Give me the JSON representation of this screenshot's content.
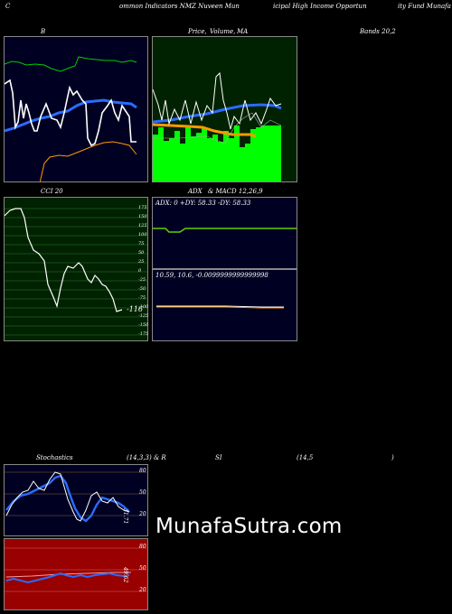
{
  "header": {
    "parts": [
      "C",
      "ommon  Indicators NMZ Nuveen  Mun",
      "icipal High Income  Opportun",
      "ity Fund Munafa"
    ]
  },
  "bb_panel": {
    "title": "B"
  },
  "price_panel": {
    "title_a": "Price,",
    "title_b": "Volume,",
    "title_c": "MA"
  },
  "bands_label": "Bands 20,2",
  "cci_panel": {
    "title": "CCI 20",
    "ticks": [
      "175",
      "150",
      "125",
      "100",
      "75",
      "50",
      "25",
      "0",
      "-25",
      "-50",
      "-75",
      "-100",
      "-125",
      "-150",
      "-175"
    ],
    "value_label": "-116"
  },
  "adx_panel": {
    "title_left": "ADX",
    "title_right": "& MACD 12,26,9",
    "readout": "ADX: 0   +DY: 58.33  -DY: 58.33"
  },
  "macd_panel": {
    "readout": "10.59,  10.6,  -0.0099999999999998"
  },
  "stoch_panel": {
    "title_left": "Stochastics",
    "title_mid": "(14,3,3) & R",
    "title_si": "SI",
    "title_params": "(14,5",
    "title_close": ")",
    "ticks": [
      "80",
      "50",
      "20"
    ],
    "side_label": "31.71"
  },
  "rsi_panel": {
    "ticks": [
      "80",
      "50",
      "20"
    ],
    "side_label": "49.62"
  },
  "brand": {
    "text": "MunafaSutra.com"
  },
  "colors": {
    "bb_bg": "#000022",
    "price_bg": "#002200",
    "cci_bg": "#002200",
    "adx_bg": "#000022",
    "stoch_bg": "#000022",
    "rsi_bg": "#990000",
    "green_line": "#00cc00",
    "blue_line": "#2a6cff",
    "orange_line": "#ff9900",
    "volume_bar": "#00ff00"
  }
}
